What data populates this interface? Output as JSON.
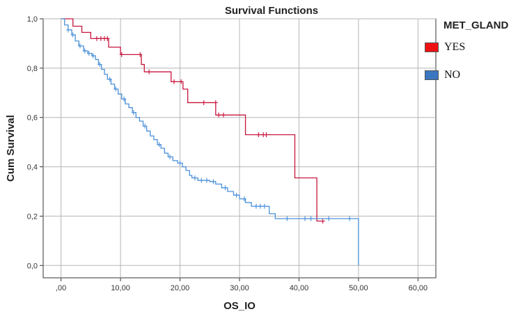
{
  "chart_data": {
    "type": "line",
    "step": true,
    "title": "Survival Functions",
    "xlabel": "OS_IO",
    "ylabel": "Cum Survival",
    "xlim": [
      -3,
      63
    ],
    "ylim": [
      -0.05,
      1.0
    ],
    "xticks": [
      0,
      10,
      20,
      30,
      40,
      50,
      60
    ],
    "xtick_labels": [
      ",00",
      "10,00",
      "20,00",
      "30,00",
      "40,00",
      "50,00",
      "60,00"
    ],
    "yticks": [
      0.0,
      0.2,
      0.4,
      0.6,
      0.8,
      1.0
    ],
    "ytick_labels": [
      "0,0",
      "0,2",
      "0,4",
      "0,6",
      "0,8",
      "1,0"
    ],
    "grid": true,
    "legend": {
      "title": "MET_GLAND",
      "placement": "right"
    },
    "series": [
      {
        "name": "YES",
        "color": "#c8143c",
        "legend_color": "#ee1111",
        "steps": [
          [
            0,
            1.0
          ],
          [
            2,
            0.97
          ],
          [
            3.5,
            0.945
          ],
          [
            5,
            0.92
          ],
          [
            8,
            0.885
          ],
          [
            10,
            0.855
          ],
          [
            13.5,
            0.815
          ],
          [
            14,
            0.785
          ],
          [
            18.5,
            0.745
          ],
          [
            20.5,
            0.715
          ],
          [
            21.3,
            0.66
          ],
          [
            26,
            0.61
          ],
          [
            31,
            0.53
          ],
          [
            39.3,
            0.355
          ],
          [
            43,
            0.18
          ],
          [
            44,
            0.18
          ]
        ],
        "censored": [
          [
            6,
            0.92
          ],
          [
            6.7,
            0.92
          ],
          [
            7.3,
            0.92
          ],
          [
            7.8,
            0.92
          ],
          [
            10.2,
            0.855
          ],
          [
            13.3,
            0.855
          ],
          [
            14.8,
            0.785
          ],
          [
            19,
            0.745
          ],
          [
            20.2,
            0.745
          ],
          [
            24,
            0.66
          ],
          [
            26,
            0.66
          ],
          [
            26.5,
            0.61
          ],
          [
            27.3,
            0.61
          ],
          [
            33.2,
            0.53
          ],
          [
            34,
            0.53
          ],
          [
            34.5,
            0.53
          ],
          [
            44,
            0.18
          ]
        ]
      },
      {
        "name": "NO",
        "color": "#4a90d9",
        "legend_color": "#3b77c0",
        "steps": [
          [
            0,
            1.0
          ],
          [
            0.6,
            0.975
          ],
          [
            1.2,
            0.955
          ],
          [
            1.8,
            0.935
          ],
          [
            2.4,
            0.91
          ],
          [
            3,
            0.89
          ],
          [
            3.8,
            0.87
          ],
          [
            4.5,
            0.86
          ],
          [
            5.2,
            0.85
          ],
          [
            5.8,
            0.835
          ],
          [
            6.3,
            0.815
          ],
          [
            6.8,
            0.795
          ],
          [
            7.3,
            0.775
          ],
          [
            7.8,
            0.755
          ],
          [
            8.4,
            0.735
          ],
          [
            9,
            0.715
          ],
          [
            9.6,
            0.695
          ],
          [
            10.2,
            0.675
          ],
          [
            10.8,
            0.655
          ],
          [
            11.4,
            0.64
          ],
          [
            12,
            0.62
          ],
          [
            12.6,
            0.6
          ],
          [
            13.2,
            0.585
          ],
          [
            13.8,
            0.565
          ],
          [
            14.4,
            0.545
          ],
          [
            15,
            0.525
          ],
          [
            15.6,
            0.51
          ],
          [
            16.2,
            0.49
          ],
          [
            16.8,
            0.475
          ],
          [
            17.4,
            0.455
          ],
          [
            18,
            0.44
          ],
          [
            18.8,
            0.425
          ],
          [
            19.6,
            0.415
          ],
          [
            20.4,
            0.4
          ],
          [
            21,
            0.385
          ],
          [
            21.6,
            0.365
          ],
          [
            22,
            0.355
          ],
          [
            23,
            0.345
          ],
          [
            25,
            0.34
          ],
          [
            26,
            0.33
          ],
          [
            27,
            0.315
          ],
          [
            28,
            0.3
          ],
          [
            29,
            0.285
          ],
          [
            30,
            0.27
          ],
          [
            31,
            0.255
          ],
          [
            32,
            0.24
          ],
          [
            35,
            0.21
          ],
          [
            36,
            0.19
          ],
          [
            50,
            0.0
          ]
        ],
        "censored": [
          [
            1.2,
            0.955
          ],
          [
            2,
            0.935
          ],
          [
            3.2,
            0.89
          ],
          [
            4,
            0.87
          ],
          [
            4.7,
            0.86
          ],
          [
            5.4,
            0.85
          ],
          [
            6.5,
            0.815
          ],
          [
            8.2,
            0.755
          ],
          [
            9.2,
            0.715
          ],
          [
            10.6,
            0.675
          ],
          [
            12.2,
            0.62
          ],
          [
            14.1,
            0.565
          ],
          [
            16.5,
            0.49
          ],
          [
            18.3,
            0.44
          ],
          [
            20,
            0.415
          ],
          [
            22.5,
            0.355
          ],
          [
            23.6,
            0.345
          ],
          [
            24.5,
            0.345
          ],
          [
            25.6,
            0.34
          ],
          [
            27.6,
            0.315
          ],
          [
            29.5,
            0.285
          ],
          [
            30.8,
            0.27
          ],
          [
            32.8,
            0.24
          ],
          [
            33.5,
            0.24
          ],
          [
            34.2,
            0.24
          ],
          [
            38,
            0.19
          ],
          [
            41,
            0.19
          ],
          [
            42,
            0.19
          ],
          [
            45,
            0.19
          ],
          [
            48.5,
            0.19
          ]
        ]
      }
    ]
  }
}
